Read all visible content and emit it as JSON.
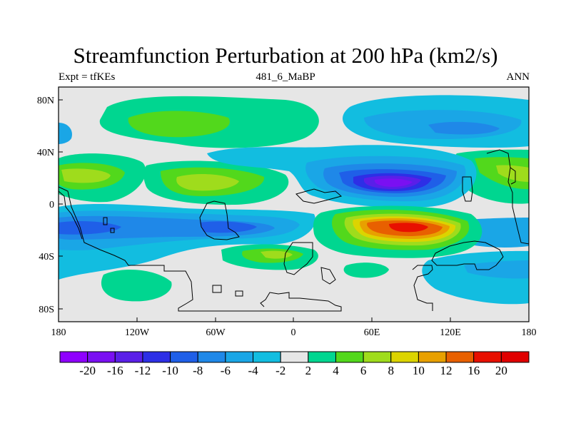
{
  "title": "Streamfunction Perturbation at 200 hPa (km2/s)",
  "subtitle_left": "Expt = tfKEs",
  "subtitle_center": "481_6_MaBP",
  "subtitle_right": "ANN",
  "x_ticks": [
    "180",
    "120W",
    "60W",
    "0",
    "60E",
    "120E",
    "180"
  ],
  "y_ticks": [
    "80N",
    "40N",
    "0",
    "40S",
    "80S"
  ],
  "colorbar": {
    "labels": [
      "-20",
      "-16",
      "-12",
      "-10",
      "-8",
      "-6",
      "-4",
      "-2",
      "2",
      "4",
      "6",
      "8",
      "10",
      "12",
      "16",
      "20"
    ],
    "colors": [
      "#8f00ff",
      "#7a10f2",
      "#5a1fe8",
      "#2d2fe6",
      "#1f5fe8",
      "#1f88e8",
      "#1aa6e6",
      "#12bde0",
      "#e6e6e6",
      "#00d690",
      "#52d81c",
      "#9fdc1c",
      "#dcd400",
      "#e8a000",
      "#e86000",
      "#e81000",
      "#e00000"
    ]
  }
}
